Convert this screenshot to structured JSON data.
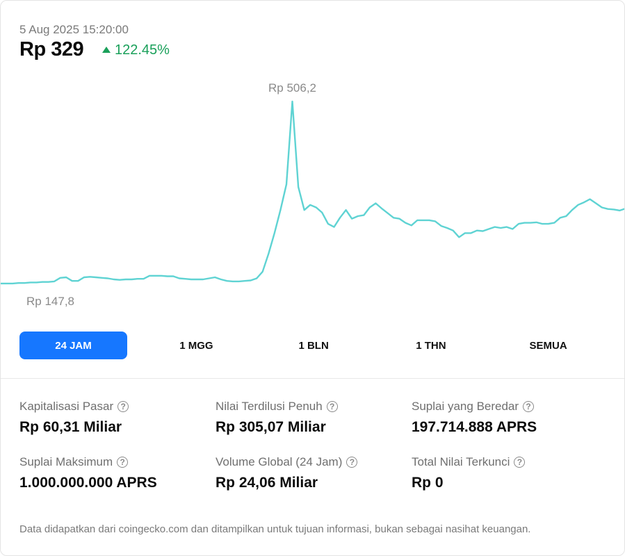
{
  "header": {
    "timestamp": "5 Aug 2025 15:20:00",
    "price": "Rp 329",
    "change": "122.45%",
    "change_color": "#1aa05a"
  },
  "tabs": [
    {
      "label": "24 JAM",
      "active": true
    },
    {
      "label": "1 MGG",
      "active": false
    },
    {
      "label": "1 BLN",
      "active": false
    },
    {
      "label": "1 THN",
      "active": false
    },
    {
      "label": "SEMUA",
      "active": false
    }
  ],
  "accent_color": "#1677ff",
  "line_color": "#5fd3d3",
  "stats": [
    {
      "label": "Kapitalisasi Pasar",
      "value": "Rp 60,31 Miliar"
    },
    {
      "label": "Nilai Terdilusi Penuh",
      "value": "Rp 305,07 Miliar"
    },
    {
      "label": "Suplai yang Beredar",
      "value": "197.714.888 APRS"
    },
    {
      "label": "Suplai Maksimum",
      "value": "1.000.000.000 APRS"
    },
    {
      "label": "Volume Global (24 Jam)",
      "value": "Rp 24,06 Miliar"
    },
    {
      "label": "Total Nilai Terkunci",
      "value": "Rp 0"
    }
  ],
  "footnote": "Data didapatkan dari coingecko.com dan ditampilkan untuk tujuan informasi, bukan sebagai nasihat keuangan.",
  "chart_data": {
    "type": "line",
    "title": "",
    "xlabel": "",
    "ylabel": "",
    "grid": false,
    "max_label": "Rp 506,2",
    "min_label": "Rp 147,8",
    "max_value": 506.2,
    "min_value": 147.8,
    "ylim": [
      147.8,
      506.2
    ],
    "series": [
      {
        "values": [
          152,
          152,
          152,
          153,
          153,
          154,
          154,
          155,
          155,
          156,
          163,
          164,
          157,
          157,
          164,
          165,
          164,
          163,
          162,
          160,
          159,
          160,
          160,
          161,
          161,
          167,
          167,
          167,
          166,
          166,
          162,
          161,
          160,
          160,
          160,
          162,
          164,
          160,
          157,
          156,
          156,
          157,
          158,
          162,
          175,
          210,
          250,
          295,
          345,
          506.2,
          340,
          295,
          305,
          300,
          290,
          268,
          262,
          280,
          295,
          278,
          283,
          285,
          300,
          308,
          298,
          289,
          280,
          278,
          270,
          265,
          275,
          275,
          275,
          273,
          264,
          260,
          255,
          242,
          250,
          250,
          255,
          254,
          258,
          262,
          260,
          262,
          258,
          268,
          270,
          270,
          271,
          268,
          268,
          270,
          280,
          283,
          295,
          305,
          310,
          316,
          308,
          300,
          297,
          296,
          294,
          298
        ]
      }
    ]
  }
}
